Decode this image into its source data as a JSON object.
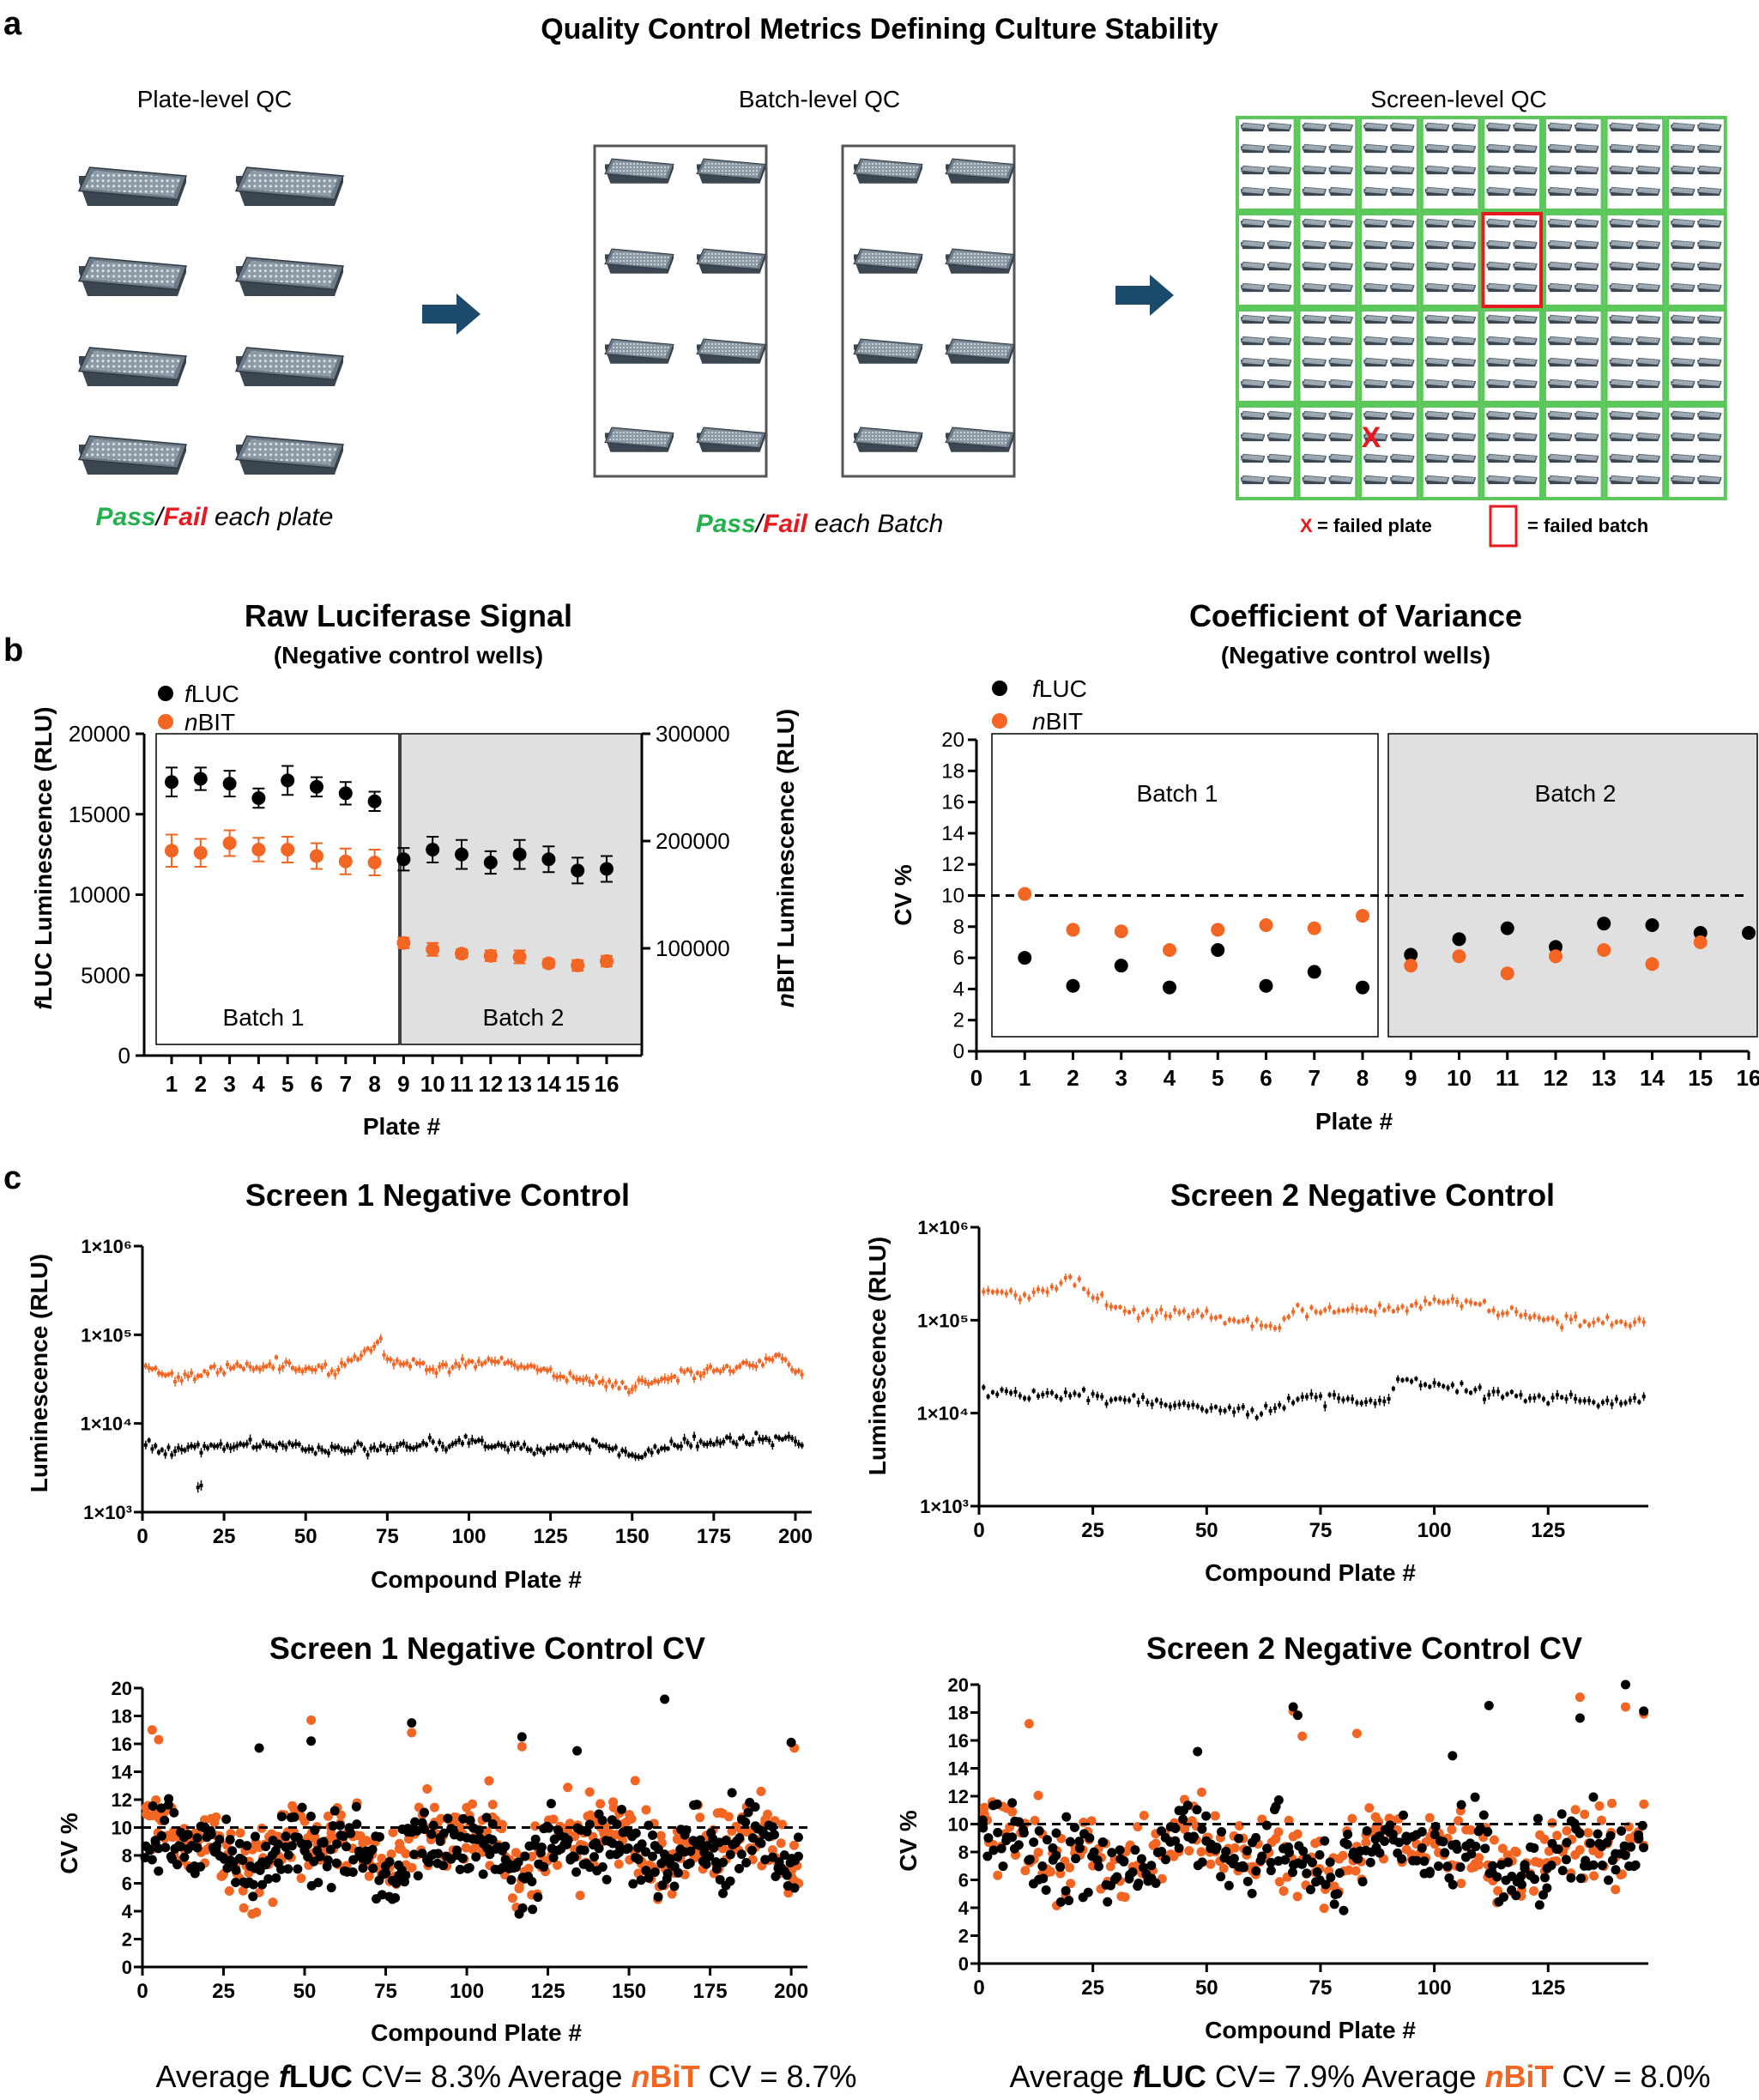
{
  "panel_a": {
    "letter": "a",
    "title": "Quality Control Metrics Defining Culture Stability",
    "plate_level_label": "Plate-level QC",
    "batch_level_label": "Batch-level QC",
    "screen_level_label": "Screen-level QC",
    "plate_caption": {
      "pass": "Pass",
      "sep": "/",
      "fail": "Fail",
      "rest": " each plate"
    },
    "batch_caption": {
      "pass": "Pass",
      "sep": "/",
      "fail": "Fail",
      "rest": " each Batch"
    },
    "failed_plate_marker": "X",
    "legend_failed_plate": "= failed plate",
    "legend_failed_batch": "= failed batch",
    "colors": {
      "pass": "#22b14c",
      "fail": "#e8191e",
      "arrow": "#1b4a6b",
      "screen_box": "#5cc85c"
    }
  },
  "panel_b": {
    "letter": "b"
  },
  "panel_c": {
    "letter": "c"
  },
  "chart_data": [
    {
      "id": "raw-luciferase",
      "type": "scatter",
      "title": "Raw Luciferase Signal",
      "subtitle": "(Negative control wells)",
      "xlabel": "Plate #",
      "ylabel_left_prefix": "f",
      "ylabel_left": "LUC Luminescence (RLU)",
      "ylabel_right_prefix": "n",
      "ylabel_right": "BIT Luminescence (RLU)",
      "x_ticks": [
        1,
        2,
        3,
        4,
        5,
        6,
        7,
        8,
        9,
        10,
        11,
        12,
        13,
        14,
        15,
        16
      ],
      "y_left_ticks": [
        0,
        5000,
        10000,
        15000,
        20000
      ],
      "y_left_lim": [
        0,
        20000
      ],
      "y_right_ticks": [
        100000,
        200000,
        300000
      ],
      "y_right_lim": [
        0,
        300000
      ],
      "batch_labels": [
        "Batch 1",
        "Batch 2"
      ],
      "legend": [
        {
          "prefix": "f",
          "name": "LUC",
          "color": "#000000"
        },
        {
          "prefix": "n",
          "name": "BIT",
          "color": "#f26522"
        }
      ],
      "series": [
        {
          "name": "fLUC",
          "axis": "left",
          "color": "#000000",
          "values": [
            17000,
            17200,
            16900,
            16000,
            17100,
            16700,
            16300,
            15800,
            12200,
            12800,
            12500,
            12000,
            12500,
            12200,
            11500,
            11600
          ],
          "err": [
            900,
            700,
            800,
            600,
            900,
            600,
            700,
            600,
            700,
            800,
            900,
            700,
            900,
            800,
            800,
            800
          ]
        },
        {
          "name": "nBIT",
          "axis": "right",
          "color": "#f26522",
          "values": [
            191000,
            189000,
            198000,
            192000,
            192000,
            186000,
            181000,
            180000,
            105000,
            99000,
            95000,
            93000,
            92000,
            86000,
            84000,
            88000
          ],
          "err": [
            15000,
            13000,
            12000,
            11000,
            12000,
            12000,
            12000,
            12000,
            5000,
            6000,
            4000,
            5000,
            6000,
            4000,
            5000,
            5000
          ]
        }
      ]
    },
    {
      "id": "cv-plates",
      "type": "scatter",
      "title": "Coefficient of Variance",
      "subtitle": "(Negative control wells)",
      "xlabel": "Plate #",
      "ylabel": "CV %",
      "x_ticks": [
        0,
        1,
        2,
        3,
        4,
        5,
        6,
        7,
        8,
        9,
        10,
        11,
        12,
        13,
        14,
        15,
        16
      ],
      "y_ticks": [
        0,
        2,
        4,
        6,
        8,
        10,
        12,
        14,
        16,
        18,
        20
      ],
      "ylim": [
        0,
        20
      ],
      "threshold": 10,
      "batch_labels": [
        "Batch 1",
        "Batch 2"
      ],
      "legend": [
        {
          "prefix": "f",
          "name": "LUC",
          "color": "#000000"
        },
        {
          "prefix": "n",
          "name": "BIT",
          "color": "#f26522"
        }
      ],
      "series": [
        {
          "name": "fLUC",
          "color": "#000000",
          "x": [
            1,
            2,
            3,
            4,
            5,
            6,
            7,
            8,
            9,
            10,
            11,
            12,
            13,
            14,
            15,
            16
          ],
          "values": [
            6.0,
            4.2,
            5.5,
            4.1,
            6.5,
            4.2,
            5.1,
            4.1,
            6.2,
            7.2,
            7.9,
            6.7,
            8.2,
            8.1,
            7.6,
            7.6
          ]
        },
        {
          "name": "nBIT",
          "color": "#f26522",
          "x": [
            1,
            2,
            3,
            4,
            5,
            6,
            7,
            8,
            9,
            10,
            11,
            12,
            13,
            14,
            15
          ],
          "values": [
            10.1,
            7.8,
            7.7,
            6.5,
            7.8,
            8.1,
            7.9,
            8.7,
            5.5,
            6.1,
            5.0,
            6.1,
            6.5,
            5.6,
            7.0
          ]
        }
      ]
    },
    {
      "id": "screen1-neg",
      "type": "scatter",
      "title": "Screen 1 Negative Control",
      "xlabel": "Compound Plate #",
      "ylabel": "Luminescence (RLU)",
      "yscale": "log",
      "y_ticks": [
        "1×10³",
        "1×10⁴",
        "1×10⁵",
        "1×10⁶"
      ],
      "ylim_log10": [
        3,
        6
      ],
      "x_ticks": [
        0,
        25,
        50,
        75,
        100,
        125,
        150,
        175,
        200
      ],
      "xlim": [
        0,
        205
      ],
      "n_plates": 202,
      "series": [
        {
          "name": "nBIT",
          "color": "#f26522",
          "anchors": [
            [
              0,
              47000
            ],
            [
              10,
              33000
            ],
            [
              20,
              38000
            ],
            [
              40,
              48000
            ],
            [
              60,
              38000
            ],
            [
              73,
              90000
            ],
            [
              75,
              52000
            ],
            [
              90,
              43000
            ],
            [
              110,
              52000
            ],
            [
              130,
              34000
            ],
            [
              150,
              26000
            ],
            [
              165,
              37000
            ],
            [
              185,
              42000
            ],
            [
              195,
              58000
            ],
            [
              202,
              38000
            ]
          ]
        },
        {
          "name": "fLUC",
          "color": "#000000",
          "anchors": [
            [
              0,
              6200
            ],
            [
              5,
              4800
            ],
            [
              20,
              5400
            ],
            [
              40,
              6000
            ],
            [
              60,
              5000
            ],
            [
              80,
              5600
            ],
            [
              100,
              6100
            ],
            [
              120,
              5200
            ],
            [
              140,
              5800
            ],
            [
              150,
              4300
            ],
            [
              165,
              5900
            ],
            [
              185,
              6300
            ],
            [
              195,
              7200
            ],
            [
              202,
              6200
            ]
          ],
          "outliers": [
            [
              17,
              1900
            ],
            [
              18,
              2000
            ]
          ]
        }
      ]
    },
    {
      "id": "screen2-neg",
      "type": "scatter",
      "title": "Screen 2 Negative Control",
      "xlabel": "Compound Plate #",
      "ylabel": "Luminescence (RLU)",
      "yscale": "log",
      "y_ticks": [
        "1×10³",
        "1×10⁴",
        "1×10⁵",
        "1×10⁶"
      ],
      "ylim_log10": [
        3,
        6
      ],
      "x_ticks": [
        0,
        25,
        50,
        75,
        100,
        125
      ],
      "xlim": [
        0,
        147
      ],
      "n_plates": 146,
      "series": [
        {
          "name": "nBIT",
          "color": "#f26522",
          "anchors": [
            [
              0,
              225000
            ],
            [
              10,
              170000
            ],
            [
              20,
              270000
            ],
            [
              30,
              130000
            ],
            [
              50,
              115000
            ],
            [
              65,
              80000
            ],
            [
              70,
              125000
            ],
            [
              90,
              125000
            ],
            [
              100,
              160000
            ],
            [
              110,
              150000
            ],
            [
              120,
              115000
            ],
            [
              135,
              88000
            ],
            [
              146,
              100000
            ]
          ]
        },
        {
          "name": "fLUC",
          "color": "#000000",
          "anchors": [
            [
              0,
              16000
            ],
            [
              5,
              18000
            ],
            [
              10,
              15000
            ],
            [
              20,
              16000
            ],
            [
              30,
              14000
            ],
            [
              50,
              12000
            ],
            [
              55,
              10500
            ],
            [
              65,
              11000
            ],
            [
              70,
              15000
            ],
            [
              90,
              13500
            ],
            [
              92,
              22000
            ],
            [
              110,
              17000
            ],
            [
              130,
              14000
            ],
            [
              140,
              12000
            ],
            [
              146,
              15000
            ]
          ]
        }
      ]
    },
    {
      "id": "screen1-cv",
      "type": "scatter",
      "title": "Screen 1 Negative Control CV",
      "xlabel": "Compound Plate #",
      "ylabel": "CV %",
      "y_ticks": [
        0,
        2,
        4,
        6,
        8,
        10,
        12,
        14,
        16,
        18,
        20
      ],
      "ylim": [
        0,
        20
      ],
      "x_ticks": [
        0,
        25,
        50,
        75,
        100,
        125,
        150,
        175,
        200
      ],
      "xlim": [
        0,
        205
      ],
      "threshold": 10,
      "n_plates": 202,
      "series": [
        {
          "name": "fLUC",
          "color": "#000000",
          "mean": 8.3,
          "outliers": [
            [
              36,
              15.7
            ],
            [
              52,
              16.2
            ],
            [
              83,
              17.5
            ],
            [
              117,
              16.5
            ],
            [
              134,
              15.5
            ],
            [
              161,
              19.2
            ],
            [
              200,
              16.1
            ]
          ]
        },
        {
          "name": "nBIT",
          "color": "#f26522",
          "mean": 8.7,
          "outliers": [
            [
              3,
              17.0
            ],
            [
              5,
              16.3
            ],
            [
              52,
              17.7
            ],
            [
              83,
              16.8
            ],
            [
              117,
              15.8
            ],
            [
              201,
              15.7
            ]
          ]
        }
      ],
      "summary": {
        "prefix": "Average ",
        "f": "f",
        "luc": "LUC",
        "mid": " CV= 8.3% Average ",
        "n": "n",
        "bit": "BiT",
        "end": " CV = 8.7%"
      }
    },
    {
      "id": "screen2-cv",
      "type": "scatter",
      "title": "Screen 2 Negative Control CV",
      "xlabel": "Compound Plate #",
      "ylabel": "CV %",
      "y_ticks": [
        0,
        2,
        4,
        6,
        8,
        10,
        12,
        14,
        16,
        18,
        20
      ],
      "ylim": [
        0,
        20
      ],
      "x_ticks": [
        0,
        25,
        50,
        75,
        100,
        125
      ],
      "xlim": [
        0,
        147
      ],
      "threshold": 10,
      "n_plates": 146,
      "series": [
        {
          "name": "fLUC",
          "color": "#000000",
          "mean": 7.9,
          "outliers": [
            [
              48,
              15.2
            ],
            [
              69,
              18.4
            ],
            [
              70,
              17.8
            ],
            [
              104,
              14.9
            ],
            [
              112,
              18.5
            ],
            [
              132,
              17.6
            ],
            [
              142,
              20.0
            ],
            [
              146,
              18.1
            ]
          ]
        },
        {
          "name": "nBIT",
          "color": "#f26522",
          "mean": 8.0,
          "outliers": [
            [
              11,
              17.2
            ],
            [
              69,
              18.1
            ],
            [
              71,
              16.3
            ],
            [
              83,
              16.5
            ],
            [
              132,
              19.1
            ],
            [
              142,
              18.4
            ],
            [
              146,
              17.9
            ]
          ]
        }
      ],
      "summary": {
        "prefix": "Average ",
        "f": "f",
        "luc": "LUC",
        "mid": " CV= 7.9% Average ",
        "n": "n",
        "bit": "BiT",
        "end": " CV = 8.0%"
      }
    }
  ]
}
